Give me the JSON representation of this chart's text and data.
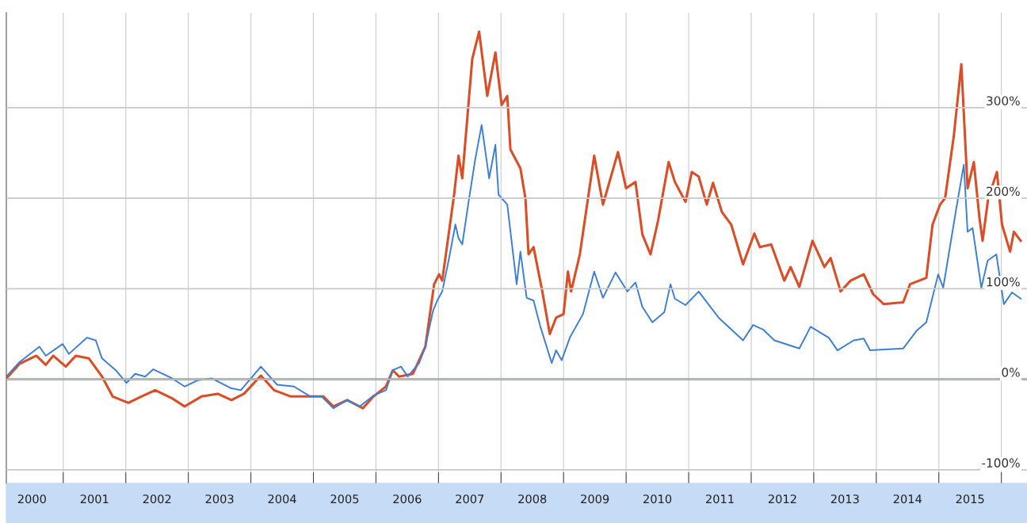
{
  "chart_data": {
    "type": "line",
    "xlim": [
      2000.09,
      2016.41
    ],
    "xticks": [
      {
        "value": 2000.5,
        "label": "2000"
      },
      {
        "value": 2001,
        "label": null
      },
      {
        "value": 2001.5,
        "label": "2001"
      },
      {
        "value": 2002,
        "label": null
      },
      {
        "value": 2002.5,
        "label": "2002"
      },
      {
        "value": 2003,
        "label": null
      },
      {
        "value": 2003.5,
        "label": "2003"
      },
      {
        "value": 2004,
        "label": null
      },
      {
        "value": 2004.5,
        "label": "2004"
      },
      {
        "value": 2005,
        "label": null
      },
      {
        "value": 2005.5,
        "label": "2005"
      },
      {
        "value": 2006,
        "label": null
      },
      {
        "value": 2006.5,
        "label": "2006"
      },
      {
        "value": 2007,
        "label": null
      },
      {
        "value": 2007.5,
        "label": "2007"
      },
      {
        "value": 2008,
        "label": null
      },
      {
        "value": 2008.5,
        "label": "2008"
      },
      {
        "value": 2009,
        "label": null
      },
      {
        "value": 2009.5,
        "label": "2009"
      },
      {
        "value": 2010,
        "label": null
      },
      {
        "value": 2010.5,
        "label": "2010"
      },
      {
        "value": 2011,
        "label": null
      },
      {
        "value": 2011.5,
        "label": "2011"
      },
      {
        "value": 2012,
        "label": null
      },
      {
        "value": 2012.5,
        "label": "2012"
      },
      {
        "value": 2013,
        "label": null
      },
      {
        "value": 2013.5,
        "label": "2013"
      },
      {
        "value": 2014,
        "label": null
      },
      {
        "value": 2014.5,
        "label": "2014"
      },
      {
        "value": 2015,
        "label": null
      },
      {
        "value": 2015.5,
        "label": "2015"
      },
      {
        "value": 2016,
        "label": null
      }
    ],
    "ylim": [
      -115,
      405
    ],
    "yticks": [
      {
        "value": -100,
        "label": "-100%"
      },
      {
        "value": 0,
        "label": "0%"
      },
      {
        "value": 100,
        "label": "100%"
      },
      {
        "value": 200,
        "label": "200%"
      },
      {
        "value": 300,
        "label": "300%"
      }
    ],
    "grid": true,
    "ref_lines": [
      {
        "axis": "y",
        "value": 0,
        "color": "#7a3a3a"
      }
    ],
    "series": [
      {
        "color": "#dc4d26",
        "x": [
          2000.09,
          2000.3,
          2000.57,
          2000.72,
          2000.84,
          2001.04,
          2001.2,
          2001.41,
          2001.62,
          2001.79,
          2002.04,
          2002.25,
          2002.47,
          2002.74,
          2002.94,
          2003.21,
          2003.47,
          2003.69,
          2003.89,
          2004.16,
          2004.37,
          2004.64,
          2004.89,
          2005.16,
          2005.32,
          2005.54,
          2005.79,
          2005.96,
          2006.16,
          2006.27,
          2006.37,
          2006.59,
          2006.79,
          2006.93,
          2007.01,
          2007.06,
          2007.25,
          2007.32,
          2007.38,
          2007.54,
          2007.65,
          2007.78,
          2007.91,
          2008.01,
          2008.1,
          2008.15,
          2008.31,
          2008.39,
          2008.44,
          2008.52,
          2008.66,
          2008.78,
          2008.88,
          2009.0,
          2009.07,
          2009.12,
          2009.26,
          2009.49,
          2009.63,
          2009.87,
          2010.0,
          2010.15,
          2010.26,
          2010.39,
          2010.51,
          2010.68,
          2010.78,
          2010.95,
          2011.05,
          2011.16,
          2011.29,
          2011.39,
          2011.53,
          2011.68,
          2011.87,
          2012.05,
          2012.14,
          2012.32,
          2012.53,
          2012.63,
          2012.77,
          2012.98,
          2013.17,
          2013.27,
          2013.43,
          2013.59,
          2013.8,
          2013.95,
          2014.12,
          2014.43,
          2014.54,
          2014.8,
          2014.9,
          2015.02,
          2015.1,
          2015.24,
          2015.36,
          2015.46,
          2015.56,
          2015.65,
          2015.7,
          2015.79,
          2015.93,
          2016.01,
          2016.14,
          2016.2,
          2016.31
        ],
        "values": [
          1,
          17,
          26,
          16,
          26,
          14,
          26,
          23,
          3,
          -19,
          -26,
          -19,
          -12,
          -21,
          -30,
          -19,
          -16,
          -23,
          -16,
          4,
          -12,
          -19,
          -19,
          -19,
          -30,
          -23,
          -32,
          -19,
          -8,
          10,
          3,
          6,
          36,
          105,
          116,
          109,
          204,
          247,
          222,
          354,
          384,
          313,
          361,
          303,
          313,
          254,
          233,
          200,
          138,
          146,
          97,
          50,
          68,
          72,
          119,
          97,
          138,
          247,
          193,
          251,
          211,
          218,
          160,
          138,
          175,
          240,
          218,
          196,
          229,
          224,
          193,
          217,
          185,
          171,
          127,
          161,
          146,
          149,
          109,
          124,
          102,
          153,
          124,
          134,
          97,
          109,
          116,
          94,
          83,
          85,
          105,
          112,
          171,
          193,
          200,
          269,
          348,
          211,
          240,
          178,
          153,
          200,
          229,
          171,
          141,
          163,
          153
        ]
      },
      {
        "color": "#3c7fd6",
        "x": [
          2000.09,
          2000.3,
          2000.62,
          2000.72,
          2000.99,
          2001.09,
          2001.38,
          2001.52,
          2001.62,
          2001.84,
          2002.01,
          2002.15,
          2002.31,
          2002.44,
          2002.74,
          2002.94,
          2003.15,
          2003.37,
          2003.69,
          2003.84,
          2004.16,
          2004.42,
          2004.69,
          2004.95,
          2005.13,
          2005.32,
          2005.54,
          2005.74,
          2005.96,
          2006.16,
          2006.27,
          2006.4,
          2006.51,
          2006.69,
          2006.79,
          2006.91,
          2006.98,
          2007.06,
          2007.17,
          2007.27,
          2007.32,
          2007.38,
          2007.49,
          2007.59,
          2007.69,
          2007.81,
          2007.91,
          2007.96,
          2008.1,
          2008.25,
          2008.31,
          2008.41,
          2008.52,
          2008.63,
          2008.81,
          2008.88,
          2008.97,
          2009.1,
          2009.31,
          2009.49,
          2009.63,
          2009.83,
          2010.02,
          2010.15,
          2010.26,
          2010.42,
          2010.61,
          2010.71,
          2010.78,
          2010.95,
          2011.16,
          2011.48,
          2011.87,
          2012.03,
          2012.19,
          2012.37,
          2012.77,
          2012.95,
          2013.24,
          2013.38,
          2013.64,
          2013.8,
          2013.9,
          2014.43,
          2014.65,
          2014.8,
          2014.99,
          2015.07,
          2015.28,
          2015.4,
          2015.46,
          2015.54,
          2015.68,
          2015.78,
          2015.92,
          2016.04,
          2016.17,
          2016.31
        ],
        "values": [
          3,
          19,
          36,
          26,
          39,
          28,
          46,
          43,
          23,
          10,
          -4,
          6,
          3,
          11,
          1,
          -8,
          -1,
          1,
          -10,
          -12,
          14,
          -6,
          -8,
          -19,
          -19,
          -32,
          -23,
          -30,
          -18,
          -12,
          10,
          14,
          3,
          18,
          36,
          75,
          87,
          97,
          134,
          171,
          156,
          149,
          200,
          244,
          281,
          222,
          259,
          204,
          193,
          105,
          141,
          90,
          87,
          58,
          18,
          32,
          21,
          46,
          72,
          119,
          90,
          118,
          97,
          107,
          80,
          63,
          74,
          105,
          89,
          82,
          97,
          68,
          43,
          60,
          55,
          43,
          34,
          58,
          46,
          32,
          43,
          45,
          32,
          34,
          54,
          63,
          116,
          101,
          189,
          237,
          163,
          167,
          101,
          131,
          138,
          83,
          96,
          89
        ]
      }
    ]
  }
}
